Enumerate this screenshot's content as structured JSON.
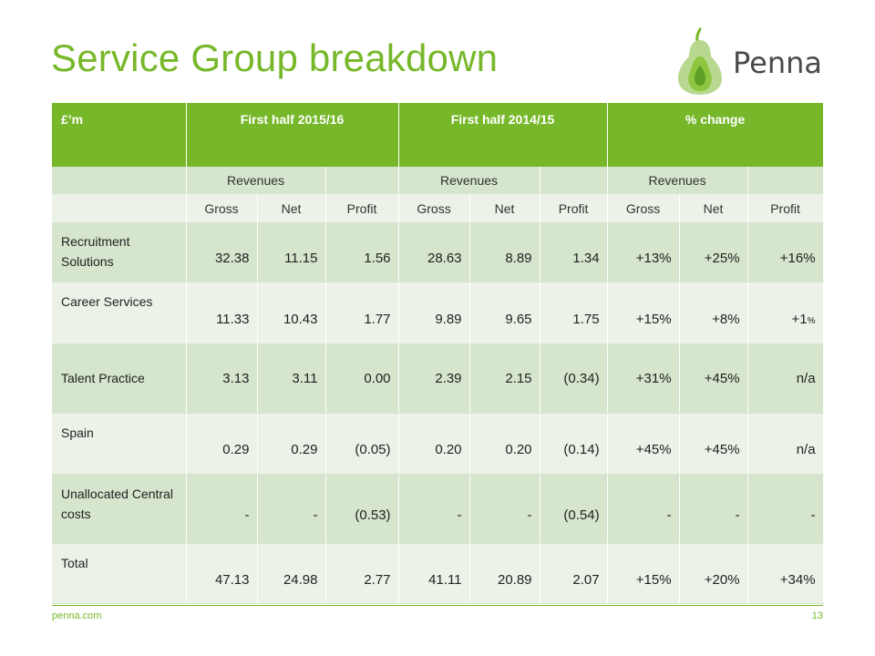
{
  "title": "Service Group breakdown",
  "logo": {
    "word": "Penna",
    "color": "#77b82a"
  },
  "table": {
    "header": [
      "£’m",
      "First half 2015/16",
      "First half 2014/15",
      "% change"
    ],
    "revenues_label": "Revenues",
    "subheaders": [
      "Gross",
      "Net",
      "Profit",
      "Gross",
      "Net",
      "Profit",
      "Gross",
      "Net",
      "Profit"
    ],
    "rows": [
      {
        "label": "Recruitment Solutions",
        "values": [
          "32.38",
          "11.15",
          "1.56",
          "28.63",
          "8.89",
          "1.34",
          "+13%",
          "+25%",
          "+16%"
        ]
      },
      {
        "label": "Career Services",
        "values": [
          "11.33",
          "10.43",
          "1.77",
          "9.89",
          "9.65",
          "1.75",
          "+15%",
          "+8%",
          "+1"
        ],
        "last_suffix": "%"
      },
      {
        "label": "Talent Practice",
        "values": [
          "3.13",
          "3.11",
          "0.00",
          "2.39",
          "2.15",
          "(0.34)",
          "+31%",
          "+45%",
          "n/a"
        ]
      },
      {
        "label": "Spain",
        "values": [
          "0.29",
          "0.29",
          "(0.05)",
          "0.20",
          "0.20",
          "(0.14)",
          "+45%",
          "+45%",
          "n/a"
        ]
      },
      {
        "label": "Unallocated Central costs",
        "values": [
          "-",
          "-",
          "(0.53)",
          "-",
          "-",
          "(0.54)",
          "-",
          "-",
          "-"
        ]
      },
      {
        "label": "Total",
        "values": [
          "47.13",
          "24.98",
          "2.77",
          "41.11",
          "20.89",
          "2.07",
          "+15%",
          "+20%",
          "+34%"
        ]
      }
    ]
  },
  "footer": {
    "url": "penna.com",
    "page": "13"
  },
  "colors": {
    "accent": "#77b82a",
    "band_dark": "#d6e5cd",
    "band_light": "#ecf2e8"
  }
}
